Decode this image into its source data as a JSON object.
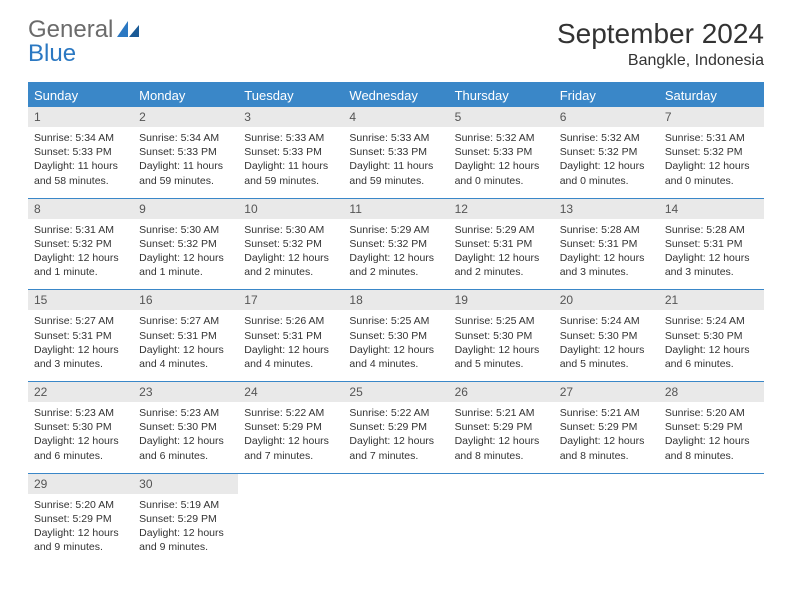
{
  "logo": {
    "text1": "General",
    "text2": "Blue",
    "text1_color": "#6b6b6b",
    "text2_color": "#2b78c2"
  },
  "title": "September 2024",
  "location": "Bangkle, Indonesia",
  "colors": {
    "header_bg": "#3a87c8",
    "header_fg": "#ffffff",
    "daynum_bg": "#e9e9e9",
    "rule": "#3a87c8"
  },
  "weekdays": [
    "Sunday",
    "Monday",
    "Tuesday",
    "Wednesday",
    "Thursday",
    "Friday",
    "Saturday"
  ],
  "weeks": [
    [
      {
        "num": "1",
        "sunrise": "5:34 AM",
        "sunset": "5:33 PM",
        "daylight": "11 hours and 58 minutes."
      },
      {
        "num": "2",
        "sunrise": "5:34 AM",
        "sunset": "5:33 PM",
        "daylight": "11 hours and 59 minutes."
      },
      {
        "num": "3",
        "sunrise": "5:33 AM",
        "sunset": "5:33 PM",
        "daylight": "11 hours and 59 minutes."
      },
      {
        "num": "4",
        "sunrise": "5:33 AM",
        "sunset": "5:33 PM",
        "daylight": "11 hours and 59 minutes."
      },
      {
        "num": "5",
        "sunrise": "5:32 AM",
        "sunset": "5:33 PM",
        "daylight": "12 hours and 0 minutes."
      },
      {
        "num": "6",
        "sunrise": "5:32 AM",
        "sunset": "5:32 PM",
        "daylight": "12 hours and 0 minutes."
      },
      {
        "num": "7",
        "sunrise": "5:31 AM",
        "sunset": "5:32 PM",
        "daylight": "12 hours and 0 minutes."
      }
    ],
    [
      {
        "num": "8",
        "sunrise": "5:31 AM",
        "sunset": "5:32 PM",
        "daylight": "12 hours and 1 minute."
      },
      {
        "num": "9",
        "sunrise": "5:30 AM",
        "sunset": "5:32 PM",
        "daylight": "12 hours and 1 minute."
      },
      {
        "num": "10",
        "sunrise": "5:30 AM",
        "sunset": "5:32 PM",
        "daylight": "12 hours and 2 minutes."
      },
      {
        "num": "11",
        "sunrise": "5:29 AM",
        "sunset": "5:32 PM",
        "daylight": "12 hours and 2 minutes."
      },
      {
        "num": "12",
        "sunrise": "5:29 AM",
        "sunset": "5:31 PM",
        "daylight": "12 hours and 2 minutes."
      },
      {
        "num": "13",
        "sunrise": "5:28 AM",
        "sunset": "5:31 PM",
        "daylight": "12 hours and 3 minutes."
      },
      {
        "num": "14",
        "sunrise": "5:28 AM",
        "sunset": "5:31 PM",
        "daylight": "12 hours and 3 minutes."
      }
    ],
    [
      {
        "num": "15",
        "sunrise": "5:27 AM",
        "sunset": "5:31 PM",
        "daylight": "12 hours and 3 minutes."
      },
      {
        "num": "16",
        "sunrise": "5:27 AM",
        "sunset": "5:31 PM",
        "daylight": "12 hours and 4 minutes."
      },
      {
        "num": "17",
        "sunrise": "5:26 AM",
        "sunset": "5:31 PM",
        "daylight": "12 hours and 4 minutes."
      },
      {
        "num": "18",
        "sunrise": "5:25 AM",
        "sunset": "5:30 PM",
        "daylight": "12 hours and 4 minutes."
      },
      {
        "num": "19",
        "sunrise": "5:25 AM",
        "sunset": "5:30 PM",
        "daylight": "12 hours and 5 minutes."
      },
      {
        "num": "20",
        "sunrise": "5:24 AM",
        "sunset": "5:30 PM",
        "daylight": "12 hours and 5 minutes."
      },
      {
        "num": "21",
        "sunrise": "5:24 AM",
        "sunset": "5:30 PM",
        "daylight": "12 hours and 6 minutes."
      }
    ],
    [
      {
        "num": "22",
        "sunrise": "5:23 AM",
        "sunset": "5:30 PM",
        "daylight": "12 hours and 6 minutes."
      },
      {
        "num": "23",
        "sunrise": "5:23 AM",
        "sunset": "5:30 PM",
        "daylight": "12 hours and 6 minutes."
      },
      {
        "num": "24",
        "sunrise": "5:22 AM",
        "sunset": "5:29 PM",
        "daylight": "12 hours and 7 minutes."
      },
      {
        "num": "25",
        "sunrise": "5:22 AM",
        "sunset": "5:29 PM",
        "daylight": "12 hours and 7 minutes."
      },
      {
        "num": "26",
        "sunrise": "5:21 AM",
        "sunset": "5:29 PM",
        "daylight": "12 hours and 8 minutes."
      },
      {
        "num": "27",
        "sunrise": "5:21 AM",
        "sunset": "5:29 PM",
        "daylight": "12 hours and 8 minutes."
      },
      {
        "num": "28",
        "sunrise": "5:20 AM",
        "sunset": "5:29 PM",
        "daylight": "12 hours and 8 minutes."
      }
    ],
    [
      {
        "num": "29",
        "sunrise": "5:20 AM",
        "sunset": "5:29 PM",
        "daylight": "12 hours and 9 minutes."
      },
      {
        "num": "30",
        "sunrise": "5:19 AM",
        "sunset": "5:29 PM",
        "daylight": "12 hours and 9 minutes."
      },
      null,
      null,
      null,
      null,
      null
    ]
  ],
  "labels": {
    "sunrise_prefix": "Sunrise: ",
    "sunset_prefix": "Sunset: ",
    "daylight_prefix": "Daylight: "
  }
}
